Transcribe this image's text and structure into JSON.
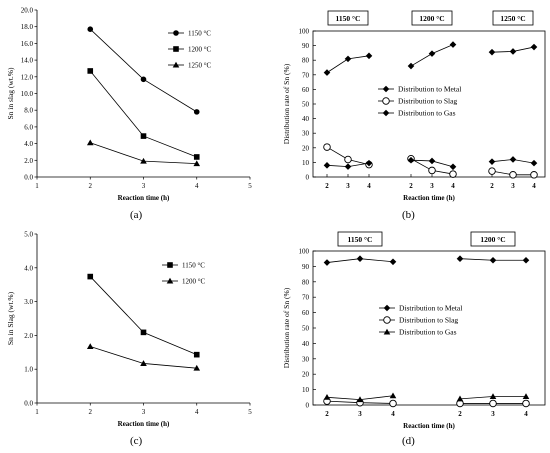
{
  "chart_data": [
    {
      "panel": "(a)",
      "type": "line",
      "xlabel": "Reaction time (h)",
      "ylabel": "Sn in slag (wt.%)",
      "xlim": [
        1,
        5
      ],
      "ylim": [
        0,
        20
      ],
      "xticks": [
        "1",
        "2",
        "3",
        "4",
        "5"
      ],
      "yticks": [
        "0.0",
        "2.0",
        "4.0",
        "6.0",
        "8.0",
        "10.0",
        "12.0",
        "14.0",
        "16.0",
        "18.0",
        "20.0"
      ],
      "x": [
        2,
        3,
        4
      ],
      "legend_position": "top-right",
      "series": [
        {
          "name": "1150 °C",
          "marker": "circle",
          "values": [
            17.7,
            11.7,
            7.8
          ]
        },
        {
          "name": "1200 °C",
          "marker": "square",
          "values": [
            12.7,
            4.9,
            2.4
          ]
        },
        {
          "name": "1250 °C",
          "marker": "triangle",
          "values": [
            4.1,
            1.9,
            1.6
          ]
        }
      ]
    },
    {
      "panel": "(b)",
      "type": "line",
      "xlabel": "Reaction time (h)",
      "ylabel": "Distribution rate of Sn (%)",
      "ylim": [
        0,
        100
      ],
      "yticks": [
        "0",
        "10",
        "20",
        "30",
        "40",
        "50",
        "60",
        "70",
        "80",
        "90",
        "100"
      ],
      "groups": [
        "1150 °C",
        "1200 °C",
        "1250 °C"
      ],
      "x": [
        2,
        3,
        4
      ],
      "legend_position": "center",
      "series": [
        {
          "name": "Distribution to Metal",
          "marker": "diamond",
          "values": [
            [
              71.5,
              80.9,
              83.0
            ],
            [
              76.0,
              84.5,
              90.7
            ],
            [
              85.5,
              86.0,
              89.0
            ]
          ]
        },
        {
          "name": "Distribution to Slag",
          "marker": "open-circle",
          "values": [
            [
              20.5,
              12.0,
              8.5
            ],
            [
              12.5,
              4.5,
              2.0
            ],
            [
              4.0,
              1.5,
              1.5
            ]
          ]
        },
        {
          "name": "Distribution to Gas",
          "marker": "diamond",
          "values": [
            [
              8.0,
              7.1,
              9.5
            ],
            [
              11.5,
              11.0,
              7.0
            ],
            [
              10.5,
              12.0,
              9.5
            ]
          ]
        }
      ]
    },
    {
      "panel": "(c)",
      "type": "line",
      "xlabel": "Reaction time (h)",
      "ylabel": "Sn in Slag (wt.%)",
      "xlim": [
        1,
        5
      ],
      "ylim": [
        0,
        5
      ],
      "xticks": [
        "1",
        "2",
        "3",
        "4",
        "5"
      ],
      "yticks": [
        "0.0",
        "1.0",
        "2.0",
        "3.0",
        "4.0",
        "5.0"
      ],
      "x": [
        2,
        3,
        4
      ],
      "legend_position": "top-right",
      "series": [
        {
          "name": "1150 °C",
          "marker": "square",
          "values": [
            3.74,
            2.09,
            1.43
          ]
        },
        {
          "name": "1200 °C",
          "marker": "triangle",
          "values": [
            1.67,
            1.17,
            1.03
          ]
        }
      ]
    },
    {
      "panel": "(d)",
      "type": "line",
      "xlabel": "Reaction time (h)",
      "ylabel": "Distribution rate of Sn (%)",
      "ylim": [
        0,
        100
      ],
      "yticks": [
        "0",
        "10",
        "20",
        "30",
        "40",
        "50",
        "60",
        "70",
        "80",
        "90",
        "100"
      ],
      "groups": [
        "1150 °C",
        "1200 °C"
      ],
      "x": [
        2,
        3,
        4
      ],
      "legend_position": "center",
      "series": [
        {
          "name": "Distribution to Metal",
          "marker": "diamond",
          "values": [
            [
              92.5,
              95.0,
              93.0
            ],
            [
              95.0,
              94.0,
              94.0
            ]
          ]
        },
        {
          "name": "Distribution to Slag",
          "marker": "open-circle",
          "values": [
            [
              2.5,
              1.5,
              1.0
            ],
            [
              1.0,
              1.0,
              1.0
            ]
          ]
        },
        {
          "name": "Distribution to Gas",
          "marker": "triangle",
          "values": [
            [
              5.0,
              3.5,
              6.0
            ],
            [
              4.0,
              5.5,
              5.5
            ]
          ]
        }
      ]
    }
  ]
}
